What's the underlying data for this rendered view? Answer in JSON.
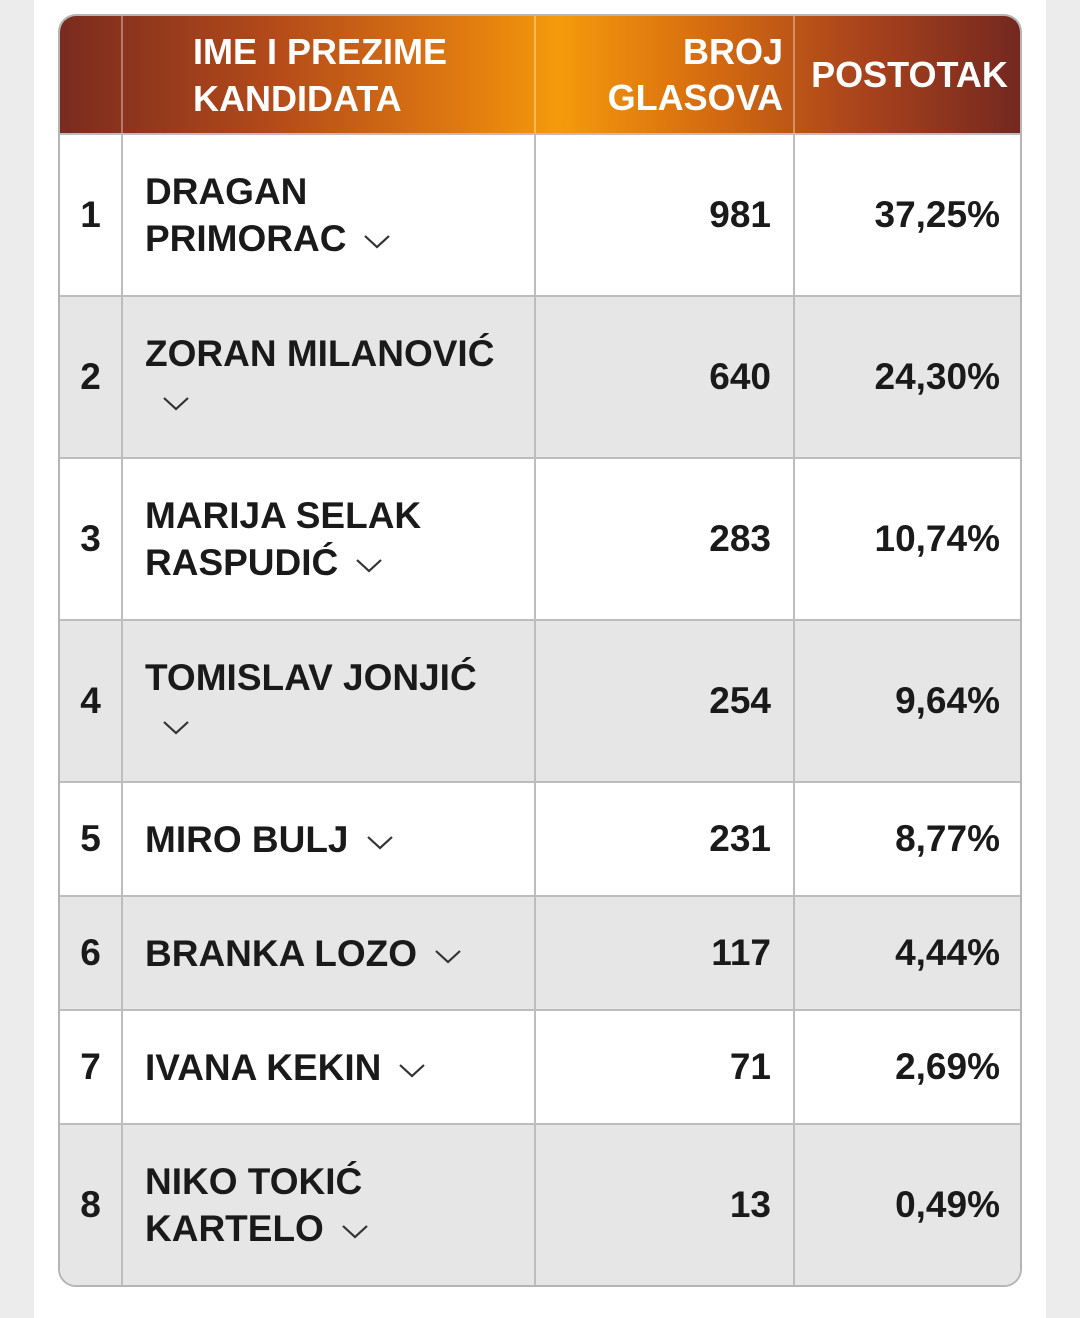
{
  "table": {
    "headers": {
      "name": "IME I PREZIME KANDIDATA",
      "votes": "BROJ GLASOVA",
      "percent": "POSTOTAK"
    },
    "rows": [
      {
        "rank": "1",
        "name": "DRAGAN PRIMORAC",
        "votes": "981",
        "percent": "37,25%"
      },
      {
        "rank": "2",
        "name": "ZORAN MILANOVIĆ",
        "votes": "640",
        "percent": "24,30%"
      },
      {
        "rank": "3",
        "name": "MARIJA SELAK RASPUDIĆ",
        "votes": "283",
        "percent": "10,74%"
      },
      {
        "rank": "4",
        "name": "TOMISLAV JONJIĆ",
        "votes": "254",
        "percent": "9,64%"
      },
      {
        "rank": "5",
        "name": "MIRO BULJ",
        "votes": "231",
        "percent": "8,77%"
      },
      {
        "rank": "6",
        "name": "BRANKA LOZO",
        "votes": "117",
        "percent": "4,44%"
      },
      {
        "rank": "7",
        "name": "IVANA KEKIN",
        "votes": "71",
        "percent": "2,69%"
      },
      {
        "rank": "8",
        "name": "NIKO TOKIĆ KARTELO",
        "votes": "13",
        "percent": "0,49%"
      }
    ]
  },
  "colors": {
    "header_gradient_center": "#f59a0c",
    "header_gradient_edge": "#742820",
    "row_alt": "#e6e6e6"
  },
  "icons": {
    "expand": "chevron-down-icon"
  }
}
